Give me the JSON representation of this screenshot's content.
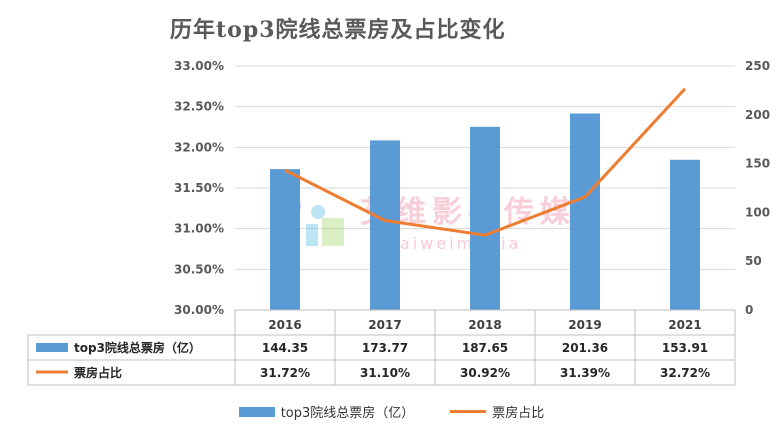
{
  "chart_data": {
    "type": "bar+line",
    "title": "历年top3院线总票房及占比变化",
    "categories": [
      "2016",
      "2017",
      "2018",
      "2019",
      "2021"
    ],
    "series": [
      {
        "name": "top3院线总票房（亿）",
        "type": "bar",
        "axis": "right",
        "values": [
          144.35,
          173.77,
          187.65,
          201.36,
          153.91
        ],
        "labels": [
          "144.35",
          "173.77",
          "187.65",
          "201.36",
          "153.91"
        ],
        "color": "#5b9bd5"
      },
      {
        "name": "票房占比",
        "type": "line",
        "axis": "left",
        "values": [
          31.72,
          31.1,
          30.92,
          31.39,
          32.72
        ],
        "labels": [
          "31.72%",
          "31.10%",
          "30.92%",
          "31.39%",
          "32.72%"
        ],
        "color": "#ed7d31"
      }
    ],
    "y_left": {
      "ylim": [
        30.0,
        33.0
      ],
      "ticks": [
        "30.00%",
        "30.50%",
        "31.00%",
        "31.50%",
        "32.00%",
        "32.50%",
        "33.00%"
      ]
    },
    "y_right": {
      "ylim": [
        0,
        250
      ],
      "ticks": [
        "0",
        "50",
        "100",
        "150",
        "200",
        "250"
      ]
    },
    "grid": true,
    "legend": "bottom",
    "data_table": true
  },
  "watermark": {
    "cn": "艾维影视传媒",
    "en": "aiweimedia"
  }
}
